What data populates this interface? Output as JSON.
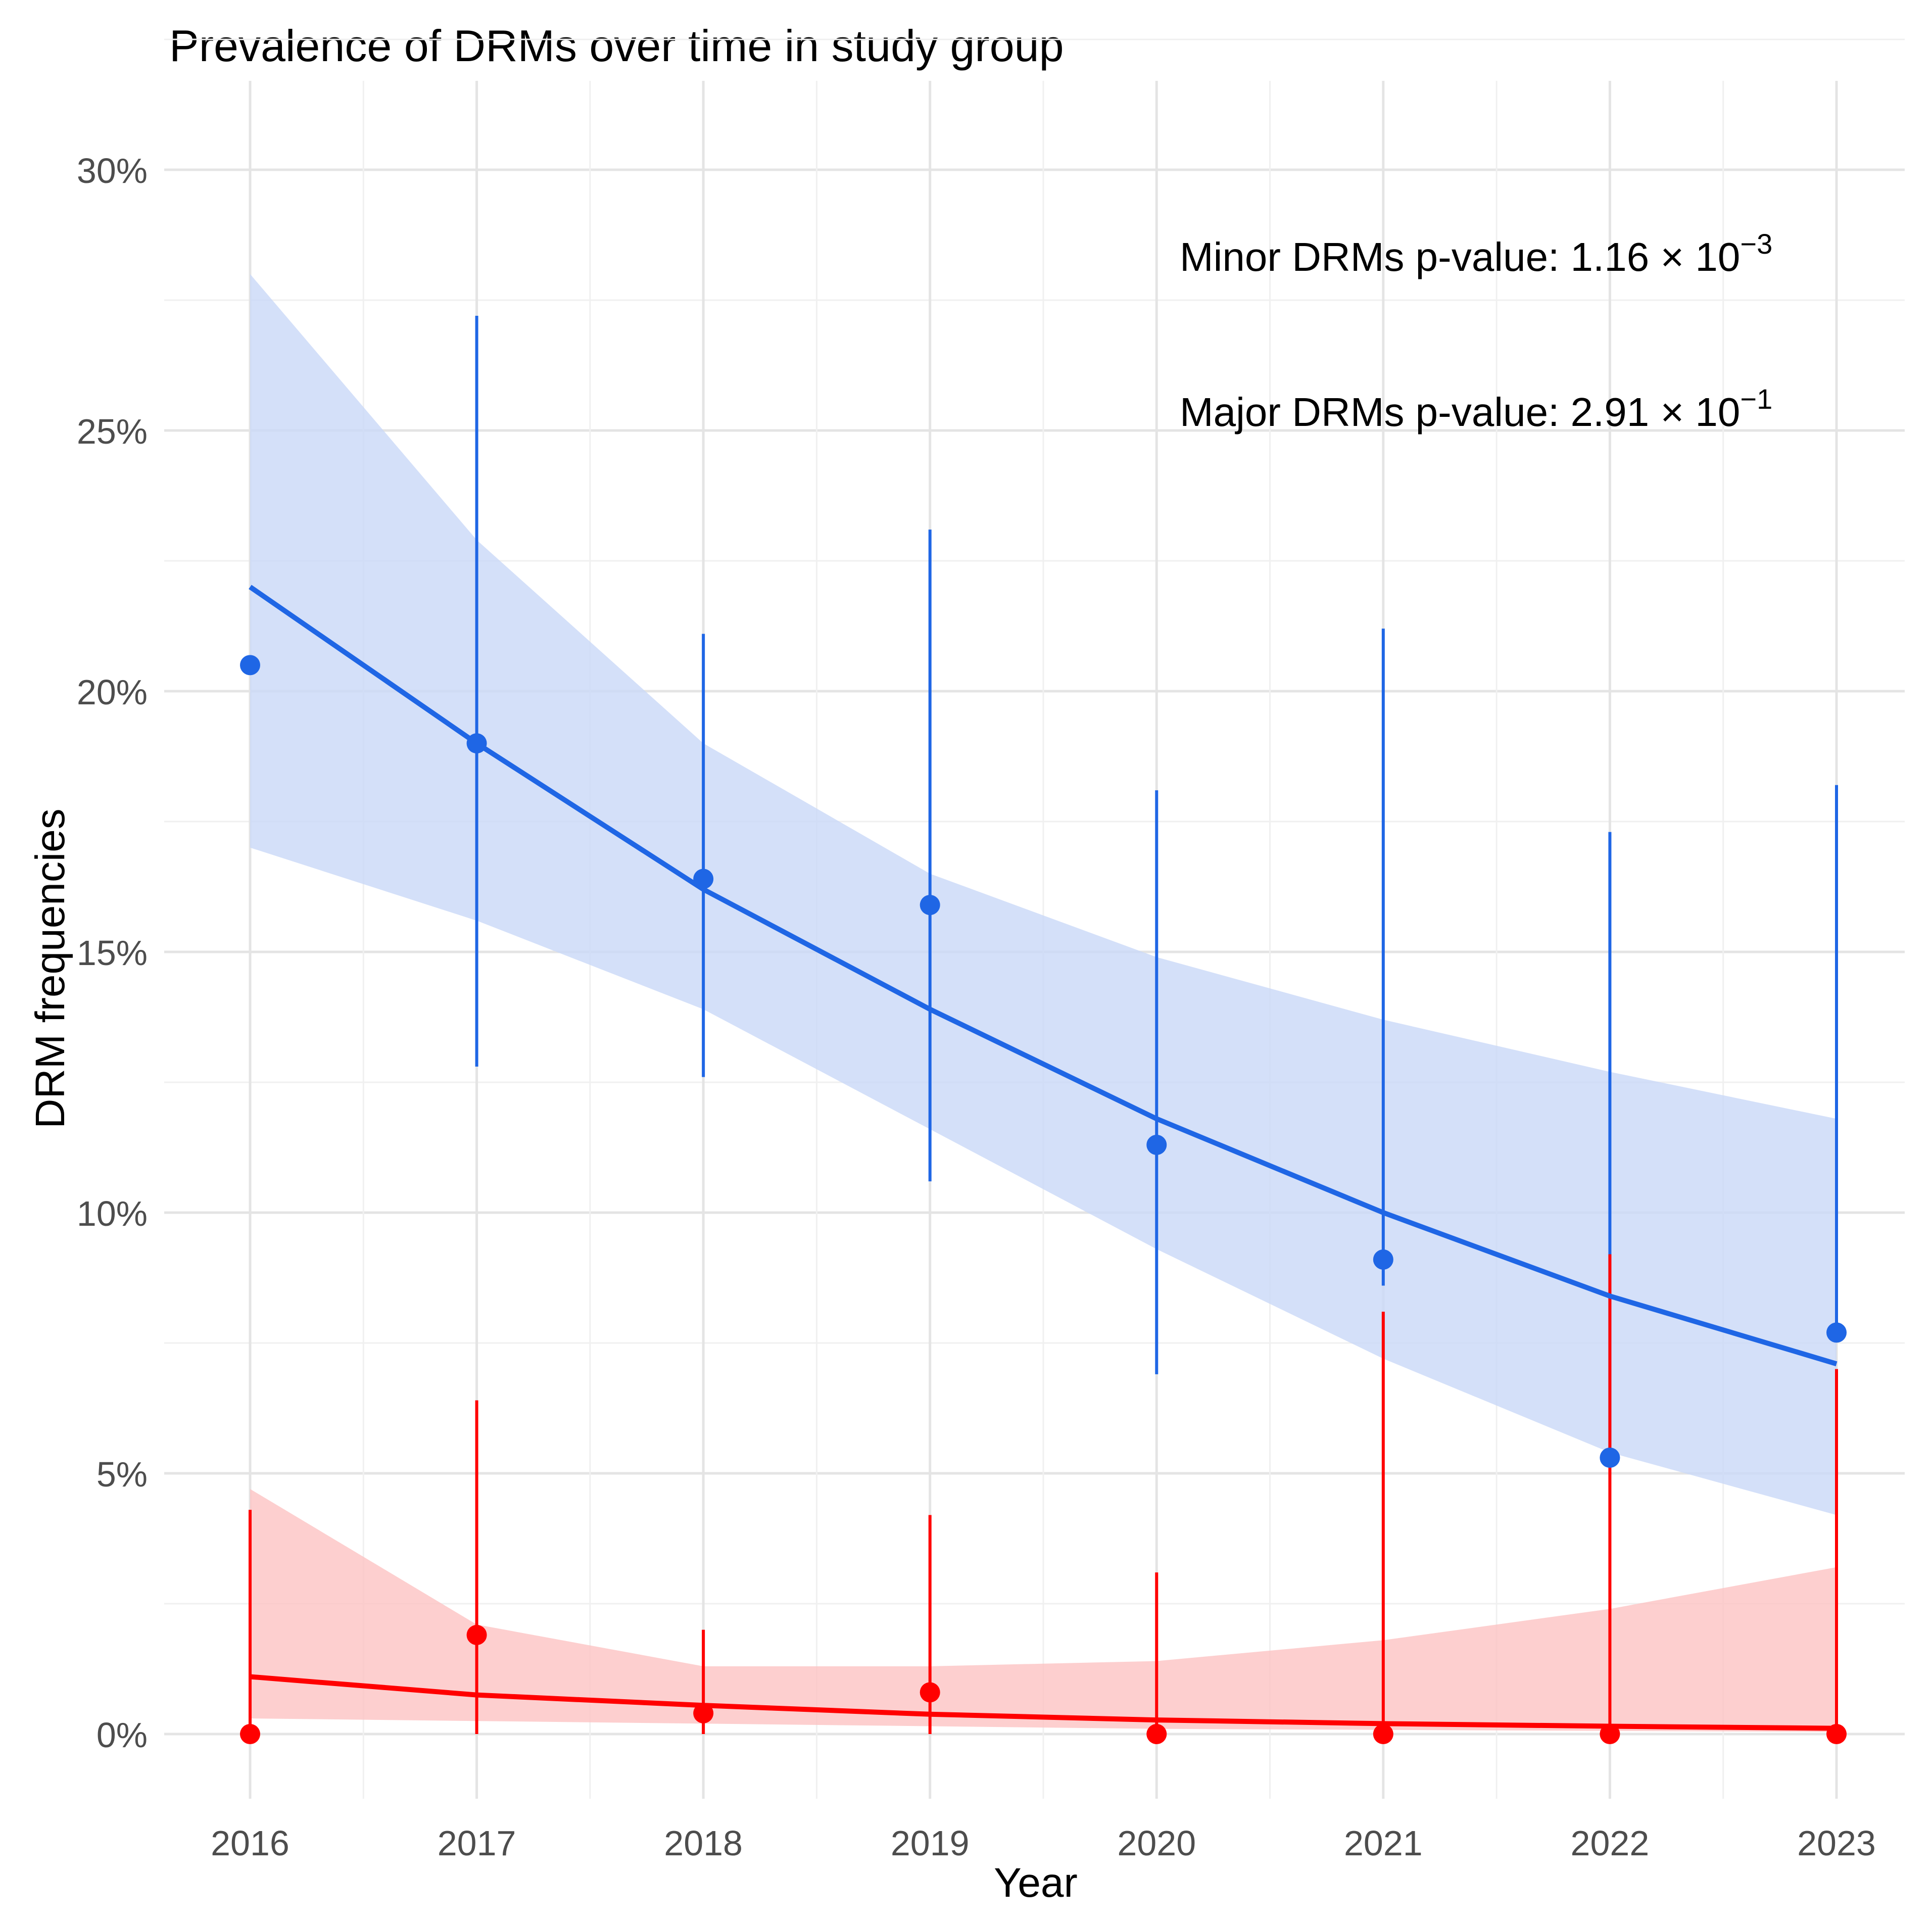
{
  "chart_data": {
    "type": "line",
    "title": "Prevalence of DRMs over time in study group",
    "xlabel": "Year",
    "ylabel": "DRM frequencies",
    "x": [
      2016,
      2017,
      2018,
      2019,
      2020,
      2021,
      2022,
      2023
    ],
    "ylim": [
      -0.016,
      0.325
    ],
    "yticks": [
      0,
      0.05,
      0.1,
      0.15,
      0.2,
      0.25,
      0.3
    ],
    "ytick_labels": [
      "0%",
      "5%",
      "10%",
      "15%",
      "20%",
      "25%",
      "30%"
    ],
    "xtick_labels": [
      "2016",
      "2017",
      "2018",
      "2019",
      "2020",
      "2021",
      "2022",
      "2023"
    ],
    "grid": true,
    "legend": "none",
    "series": [
      {
        "color": "#1f66e5",
        "band_color": "#c9d8f7",
        "points": [
          0.205,
          0.19,
          0.164,
          0.159,
          0.113,
          0.091,
          0.053,
          0.077
        ],
        "error_low": [
          0.205,
          0.128,
          0.126,
          0.106,
          0.069,
          0.086,
          0.053,
          0.077
        ],
        "error_high": [
          0.205,
          0.272,
          0.211,
          0.231,
          0.181,
          0.212,
          0.173,
          0.182
        ],
        "fit": [
          0.22,
          0.19,
          0.162,
          0.139,
          0.118,
          0.1,
          0.084,
          0.071
        ],
        "ci_low": [
          0.17,
          0.156,
          0.139,
          0.116,
          0.093,
          0.072,
          0.054,
          0.042
        ],
        "ci_high": [
          0.28,
          0.229,
          0.19,
          0.165,
          0.149,
          0.137,
          0.127,
          0.118
        ]
      },
      {
        "color": "#ff0000",
        "band_color": "#fcc3c3",
        "points": [
          0.0,
          0.019,
          0.004,
          0.008,
          0.0,
          0.0,
          0.0,
          0.0
        ],
        "error_low": [
          0.0,
          0.0,
          0.0,
          0.0,
          0.0,
          0.0,
          0.0,
          0.0
        ],
        "error_high": [
          0.043,
          0.064,
          0.02,
          0.042,
          0.031,
          0.081,
          0.092,
          0.07
        ],
        "fit": [
          0.011,
          0.0075,
          0.0055,
          0.0038,
          0.0027,
          0.002,
          0.0015,
          0.0011
        ],
        "ci_low": [
          0.003,
          0.0025,
          0.002,
          0.0015,
          0.001,
          0.0008,
          0.0006,
          0.0004
        ],
        "ci_high": [
          0.047,
          0.021,
          0.013,
          0.013,
          0.014,
          0.018,
          0.024,
          0.032
        ]
      }
    ],
    "annotations": [
      {
        "base": "Minor DRMs p-value: 1.16 × 10",
        "exp": "−3",
        "color": "#1f66e5"
      },
      {
        "base": "Major DRMs p-value: 2.91 × 10",
        "exp": "−1",
        "color": "#ff0000"
      }
    ]
  }
}
